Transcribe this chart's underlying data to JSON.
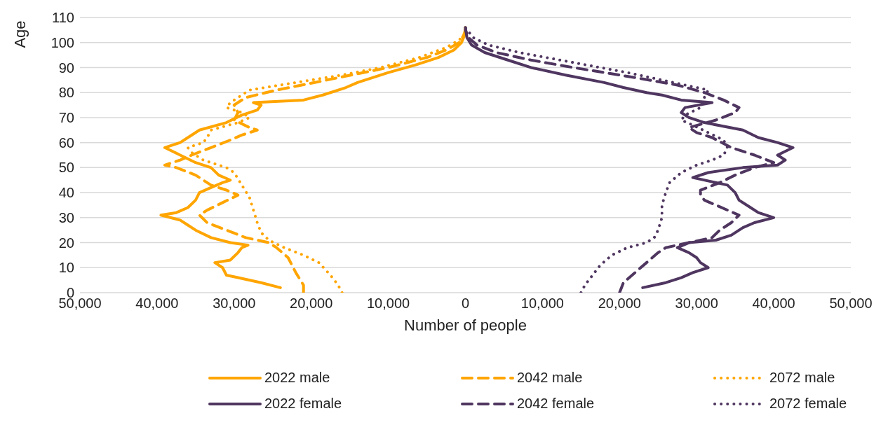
{
  "chart_data": {
    "type": "line",
    "xlabel": "Number of people",
    "ylabel": "Age",
    "xlim": [
      -50000,
      50000
    ],
    "xticks": [
      {
        "value": -50000,
        "label": "50,000"
      },
      {
        "value": -40000,
        "label": "40,000"
      },
      {
        "value": -30000,
        "label": "30,000"
      },
      {
        "value": -20000,
        "label": "20,000"
      },
      {
        "value": -10000,
        "label": "10,000"
      },
      0,
      {
        "value": 10000,
        "label": "10,000"
      },
      {
        "value": 20000,
        "label": "20,000"
      },
      {
        "value": 30000,
        "label": "30,000"
      },
      {
        "value": 40000,
        "label": "40,000"
      },
      {
        "value": 50000,
        "label": "50,000"
      }
    ],
    "ylim": [
      0,
      110
    ],
    "yticks": [
      0,
      10,
      20,
      30,
      40,
      50,
      60,
      70,
      80,
      90,
      100,
      110
    ],
    "grid": "y",
    "legend": "bottom",
    "marker": "none",
    "series": [
      {
        "name": "2022 male",
        "color": "#ffa500",
        "line_style": "solid",
        "x": [
          -24000,
          -26500,
          -29500,
          -31000,
          -31500,
          -32500,
          -30500,
          -29500,
          -29000,
          -28200,
          -30500,
          -33000,
          -35000,
          -36000,
          -37000,
          -39500,
          -37500,
          -36000,
          -35000,
          -34500,
          -33000,
          -31500,
          -30500,
          -32000,
          -33000,
          -35000,
          -37000,
          -39000,
          -37000,
          -36000,
          -34500,
          -31000,
          -29000,
          -27000,
          -26500,
          -27500,
          -21000,
          -18500,
          -15500,
          -14000,
          -10000,
          -6500,
          -3500,
          -1500,
          -500,
          -100,
          0
        ],
        "values": [
          2,
          4,
          6,
          7,
          10,
          12,
          13,
          16,
          18,
          19,
          20,
          22,
          25,
          27,
          29,
          31,
          32,
          34,
          37,
          40,
          42,
          44,
          45,
          47,
          50,
          52,
          55,
          58,
          60,
          62,
          65,
          68,
          71,
          73,
          75,
          76,
          77,
          79,
          82,
          84,
          88,
          91,
          94,
          97,
          100,
          103,
          106
        ]
      },
      {
        "name": "2042 male",
        "color": "#ffa500",
        "line_style": "dashed",
        "x": [
          -21000,
          -21000,
          -22000,
          -23000,
          -24500,
          -25500,
          -28500,
          -31000,
          -33500,
          -34500,
          -33500,
          -31500,
          -29500,
          -31000,
          -33000,
          -35000,
          -37500,
          -39000,
          -37000,
          -35500,
          -33000,
          -30500,
          -29000,
          -27000,
          -28000,
          -30000,
          -29500,
          -30000,
          -28500,
          -24500,
          -18000,
          -10000,
          -5000,
          -2500,
          -800,
          -200,
          0
        ],
        "values": [
          0,
          3,
          8,
          14,
          18,
          20,
          22,
          25,
          28,
          31,
          33,
          36,
          39,
          41,
          43,
          47,
          50,
          51,
          53,
          55,
          58,
          61,
          63,
          65,
          66,
          69,
          72,
          75,
          78,
          81,
          85,
          90,
          94,
          97,
          100,
          103,
          105
        ]
      },
      {
        "name": "2072 male",
        "color": "#ffa500",
        "line_style": "dotted",
        "x": [
          -16000,
          -16500,
          -17500,
          -19000,
          -21000,
          -23500,
          -25500,
          -26500,
          -27000,
          -27500,
          -28000,
          -29000,
          -30000,
          -31000,
          -34000,
          -35500,
          -36000,
          -34000,
          -33500,
          -33000,
          -29500,
          -28000,
          -29000,
          -31000,
          -30500,
          -29500,
          -28000,
          -22000,
          -16000,
          -11000,
          -6000,
          -2500,
          -800,
          0
        ],
        "values": [
          0,
          3,
          7,
          12,
          15,
          18,
          21,
          24,
          28,
          33,
          38,
          43,
          48,
          50,
          53,
          56,
          58,
          60,
          62,
          65,
          68,
          70,
          72,
          74,
          76,
          78,
          81,
          84,
          87,
          90,
          94,
          98,
          101,
          104
        ]
      },
      {
        "name": "2022 female",
        "color": "#4f3660",
        "line_style": "solid",
        "x": [
          23000,
          26000,
          28000,
          29500,
          31500,
          30500,
          30000,
          29000,
          27500,
          29000,
          32500,
          34500,
          36000,
          37500,
          40000,
          38000,
          37000,
          35500,
          35000,
          34000,
          29500,
          31500,
          36000,
          40500,
          41500,
          40500,
          42500,
          40500,
          38000,
          36000,
          31000,
          29000,
          28000,
          28500,
          32000,
          28000,
          25500,
          23500,
          20500,
          18000,
          13000,
          8500,
          5500,
          2500,
          800,
          200,
          0
        ],
        "values": [
          2,
          4,
          6,
          8,
          10,
          12,
          14,
          16,
          18,
          20,
          21,
          23,
          26,
          28,
          30,
          32,
          34,
          37,
          40,
          43,
          46,
          48,
          50,
          51,
          53,
          55,
          58,
          60,
          62,
          65,
          68,
          70,
          72,
          74,
          76,
          77,
          79,
          80,
          82,
          84,
          87,
          90,
          93,
          96,
          99,
          102,
          106
        ]
      },
      {
        "name": "2042 female",
        "color": "#4f3660",
        "line_style": "dashed",
        "x": [
          20000,
          20500,
          22000,
          23500,
          25000,
          26000,
          29000,
          32000,
          33000,
          34500,
          35500,
          34000,
          32500,
          31000,
          30500,
          30500,
          33000,
          35000,
          37500,
          40000,
          37500,
          34500,
          32000,
          30000,
          29000,
          32500,
          35000,
          35500,
          33500,
          31000,
          27500,
          22000,
          14000,
          8500,
          4000,
          1500,
          400,
          0
        ],
        "values": [
          0,
          4,
          8,
          12,
          16,
          18,
          20,
          22,
          25,
          28,
          31,
          33,
          35,
          37,
          39,
          41,
          44,
          47,
          50,
          52,
          55,
          58,
          62,
          64,
          66,
          69,
          72,
          74,
          77,
          80,
          83,
          86,
          90,
          93,
          96,
          99,
          102,
          105
        ]
      },
      {
        "name": "2072 female",
        "color": "#4f3660",
        "line_style": "dotted",
        "x": [
          15000,
          15500,
          16500,
          17500,
          19000,
          21000,
          23500,
          24500,
          25000,
          25500,
          25500,
          26000,
          26500,
          28000,
          30000,
          32000,
          33500,
          34000,
          33500,
          31500,
          29500,
          28000,
          28500,
          30500,
          31000,
          31500,
          27000,
          21000,
          14000,
          7000,
          3000,
          1000,
          0
        ],
        "values": [
          0,
          3,
          7,
          11,
          15,
          18,
          20,
          22,
          25,
          30,
          35,
          40,
          44,
          48,
          51,
          53,
          55,
          58,
          61,
          64,
          67,
          69,
          71,
          74,
          78,
          81,
          84,
          88,
          92,
          96,
          99,
          102,
          106
        ]
      }
    ]
  }
}
